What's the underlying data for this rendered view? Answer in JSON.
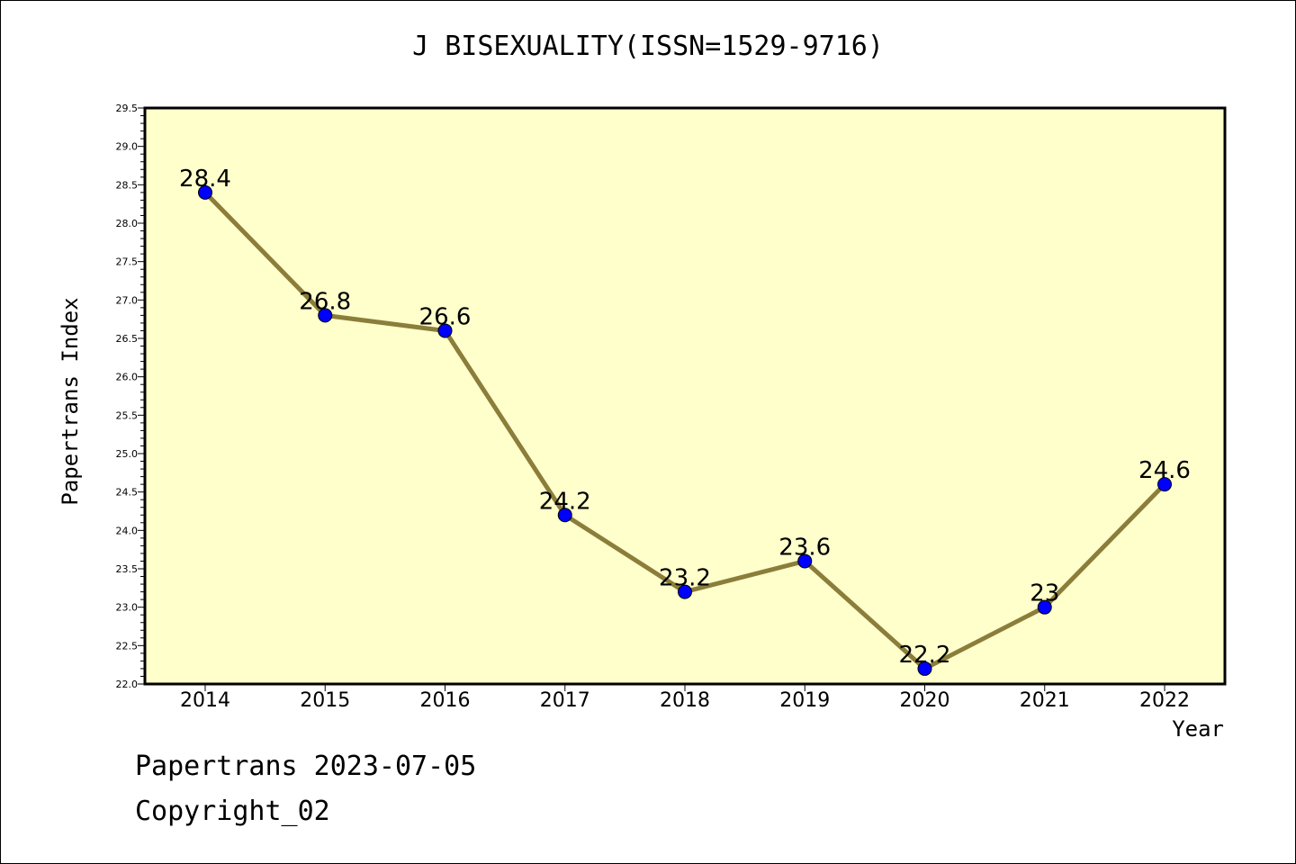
{
  "chart_data": {
    "type": "line",
    "title": "J BISEXUALITY(ISSN=1529-9716)",
    "xlabel": "Year",
    "ylabel": "Papertrans Index",
    "categories": [
      "2014",
      "2015",
      "2016",
      "2017",
      "2018",
      "2019",
      "2020",
      "2021",
      "2022"
    ],
    "series": [
      {
        "values": [
          28.4,
          26.8,
          26.6,
          24.2,
          23.2,
          23.6,
          22.2,
          23.0,
          24.6
        ]
      }
    ],
    "data_labels": [
      "28.4",
      "26.8",
      "26.6",
      "24.2",
      "23.2",
      "23.6",
      "22.2",
      "23",
      "24.6"
    ],
    "ylim": [
      22.0,
      29.5
    ],
    "yticks": [
      "22.0",
      "22.5",
      "23.0",
      "23.5",
      "24.0",
      "24.5",
      "25.0",
      "25.5",
      "26.0",
      "26.5",
      "27.0",
      "27.5",
      "28.0",
      "28.5",
      "29.0",
      "29.5"
    ],
    "grid": false,
    "legend": "none",
    "colors": {
      "plot_bg": "#ffffcc",
      "line": "#8b7d3a",
      "marker": "#0000ff"
    }
  },
  "footer": {
    "line1": "Papertrans 2023-07-05",
    "line2": "Copyright_02"
  }
}
